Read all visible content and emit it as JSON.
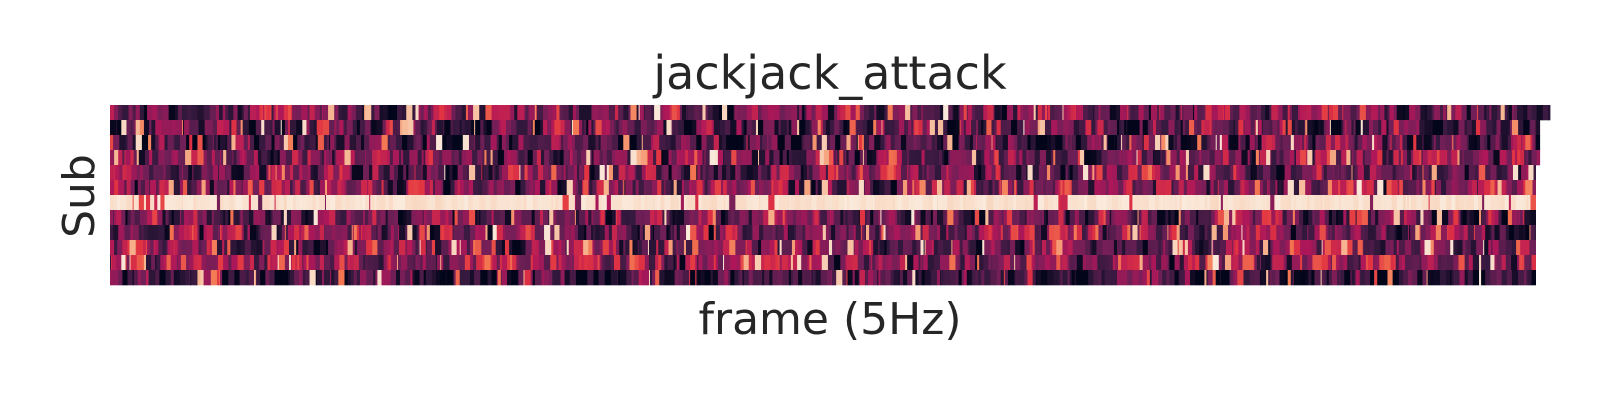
{
  "chart_data": {
    "type": "heatmap",
    "title": "jackjack_attack",
    "xlabel": "frame (5Hz)",
    "ylabel": "Sub",
    "rows": 12,
    "frames": 1400,
    "colormap": "rocket",
    "colormap_stops": [
      "#03051a",
      "#35193e",
      "#701f57",
      "#ad1759",
      "#e13342",
      "#f37651",
      "#f6b48f",
      "#faebdd"
    ],
    "color_range": [
      0,
      1
    ],
    "x_ticks_shown": false,
    "y_ticks_shown": false,
    "row_mean_level": [
      0.3,
      0.22,
      0.2,
      0.28,
      0.3,
      0.32,
      0.9,
      0.22,
      0.3,
      0.32,
      0.38,
      0.16
    ],
    "row_valid_frames": [
      1400,
      1390,
      1390,
      1390,
      1386,
      1386,
      1386,
      1386,
      1386,
      1386,
      1386,
      1386
    ]
  }
}
